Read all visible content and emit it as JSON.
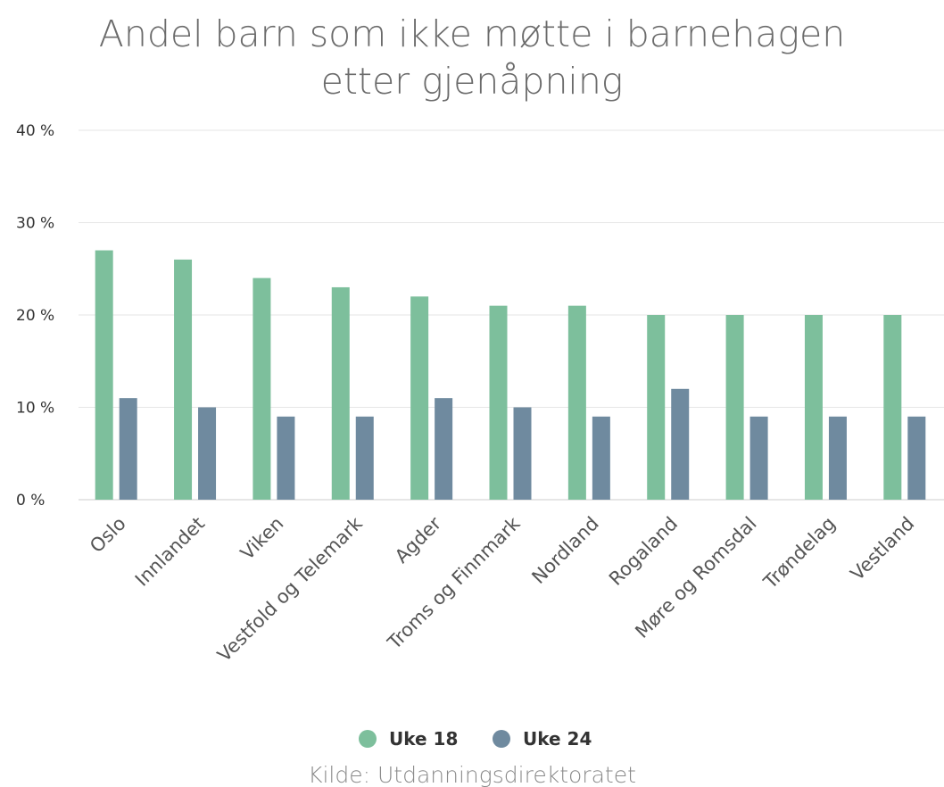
{
  "chart_data": {
    "type": "bar",
    "title": "Andel barn som ikke møtte i barnehagen etter gjenåpning",
    "title_lines": [
      "Andel barn som ikke møtte i barnehagen",
      "etter gjenåpning"
    ],
    "categories": [
      "Oslo",
      "Innlandet",
      "Viken",
      "Vestfold og Telemark",
      "Agder",
      "Troms og Finnmark",
      "Nordland",
      "Rogaland",
      "Møre og Romsdal",
      "Trøndelag",
      "Vestland"
    ],
    "series": [
      {
        "name": "Uke 18",
        "color": "#7dbf9c",
        "values": [
          27,
          26,
          24,
          23,
          22,
          21,
          21,
          20,
          20,
          20,
          20
        ]
      },
      {
        "name": "Uke 24",
        "color": "#6f8a9f",
        "values": [
          11,
          10,
          9,
          9,
          11,
          10,
          9,
          12,
          9,
          9,
          9
        ]
      }
    ],
    "y_ticks": [
      0,
      10,
      20,
      30,
      40
    ],
    "y_tick_labels": [
      "0 %",
      "10 %",
      "20 %",
      "30 %",
      "40 %"
    ],
    "ylim": [
      0,
      40
    ],
    "grid": true,
    "legend_position": "bottom-center",
    "source": "Kilde: Utdanningsdirektoratet"
  }
}
